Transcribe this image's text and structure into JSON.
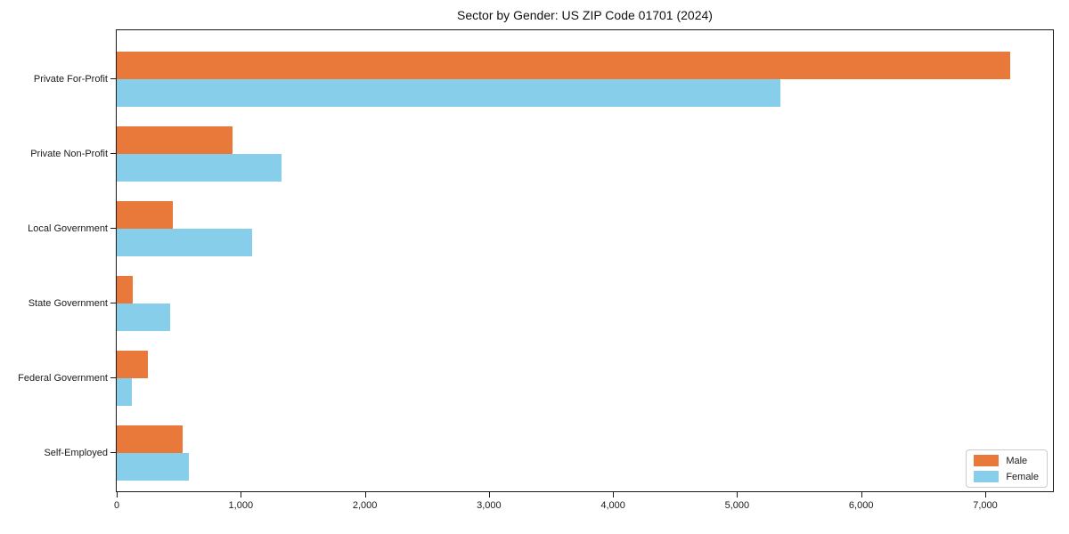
{
  "chart_data": {
    "type": "bar",
    "orientation": "horizontal",
    "title": "Sector by Gender: US ZIP Code 01701 (2024)",
    "xlabel": "",
    "ylabel": "",
    "categories": [
      "Private For-Profit",
      "Private Non-Profit",
      "Local Government",
      "State Government",
      "Federal Government",
      "Self-Employed"
    ],
    "series": [
      {
        "name": "Male",
        "color": "#e8793a",
        "values": [
          7200,
          930,
          450,
          130,
          250,
          530
        ]
      },
      {
        "name": "Female",
        "color": "#87ceeb",
        "values": [
          5350,
          1330,
          1090,
          430,
          120,
          580
        ]
      }
    ],
    "xlim": [
      0,
      7560
    ],
    "xticks": [
      0,
      1000,
      2000,
      3000,
      4000,
      5000,
      6000,
      7000
    ],
    "xtick_labels": [
      "0",
      "1,000",
      "2,000",
      "3,000",
      "4,000",
      "5,000",
      "6,000",
      "7,000"
    ],
    "grid": false,
    "legend_position": "lower right"
  }
}
